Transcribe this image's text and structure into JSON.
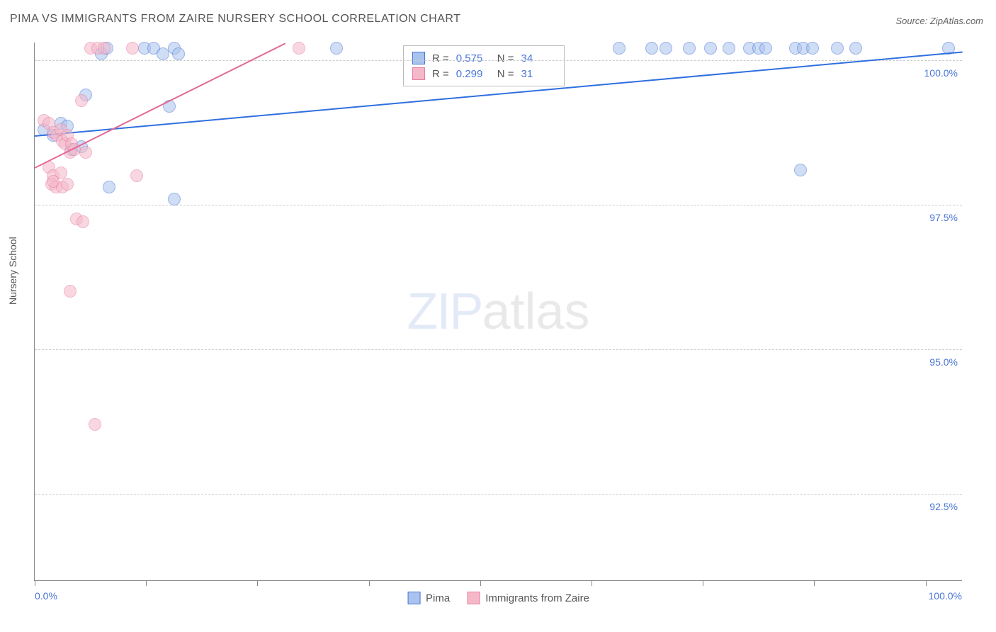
{
  "title": "PIMA VS IMMIGRANTS FROM ZAIRE NURSERY SCHOOL CORRELATION CHART",
  "source": "Source: ZipAtlas.com",
  "yaxis_label": "Nursery School",
  "watermark": {
    "bold": "ZIP",
    "light": "atlas"
  },
  "chart": {
    "type": "scatter",
    "background_color": "#ffffff",
    "grid_color": "#cccccc",
    "axis_color": "#888888",
    "xlim": [
      0,
      100
    ],
    "ylim": [
      91,
      100.3
    ],
    "xtick_positions": [
      0,
      12,
      24,
      36,
      48,
      60,
      72,
      84,
      96
    ],
    "xtick_labels_shown": {
      "first": "0.0%",
      "last": "100.0%"
    },
    "ytick_positions": [
      92.5,
      95.0,
      97.5,
      100.0
    ],
    "ytick_labels": [
      "92.5%",
      "95.0%",
      "97.5%",
      "100.0%"
    ],
    "label_fontsize": 14,
    "label_color": "#4a76d6",
    "title_fontsize": 16,
    "title_color": "#555555",
    "marker_radius": 9,
    "marker_opacity": 0.55,
    "marker_border_width": 1,
    "trendline_width": 2
  },
  "series": [
    {
      "name": "Pima",
      "label": "Pima",
      "fill": "#a9c3ee",
      "stroke": "#4a76d6",
      "trendline_color": "#2f6fe0",
      "trendline": {
        "x1": 0,
        "y1": 98.7,
        "x2": 100,
        "y2": 100.15
      },
      "stats": {
        "R": "0.575",
        "N": "34"
      },
      "points": [
        [
          5.5,
          99.4
        ],
        [
          7.2,
          100.1
        ],
        [
          7.8,
          100.2
        ],
        [
          11.8,
          100.2
        ],
        [
          12.8,
          100.2
        ],
        [
          13.8,
          100.1
        ],
        [
          15.0,
          100.2
        ],
        [
          15.5,
          100.1
        ],
        [
          32.5,
          100.2
        ],
        [
          63.0,
          100.2
        ],
        [
          66.5,
          100.2
        ],
        [
          68.0,
          100.2
        ],
        [
          70.5,
          100.2
        ],
        [
          72.8,
          100.2
        ],
        [
          74.8,
          100.2
        ],
        [
          77.0,
          100.2
        ],
        [
          78.0,
          100.2
        ],
        [
          78.8,
          100.2
        ],
        [
          82.0,
          100.2
        ],
        [
          82.8,
          100.2
        ],
        [
          83.8,
          100.2
        ],
        [
          86.5,
          100.2
        ],
        [
          88.5,
          100.2
        ],
        [
          98.5,
          100.2
        ],
        [
          1.0,
          98.8
        ],
        [
          2.0,
          98.7
        ],
        [
          2.8,
          98.9
        ],
        [
          3.5,
          98.85
        ],
        [
          4.0,
          98.45
        ],
        [
          5.0,
          98.5
        ],
        [
          8.0,
          97.8
        ],
        [
          14.5,
          99.2
        ],
        [
          15.0,
          97.6
        ],
        [
          82.5,
          98.1
        ]
      ]
    },
    {
      "name": "Immigrants from Zaire",
      "label": "Immigrants from Zaire",
      "fill": "#f5b8c9",
      "stroke": "#e77da0",
      "trendline_color": "#e26a94",
      "trendline": {
        "x1": 0,
        "y1": 98.15,
        "x2": 27,
        "y2": 100.3
      },
      "stats": {
        "R": "0.299",
        "N": "31"
      },
      "points": [
        [
          6.0,
          100.2
        ],
        [
          6.8,
          100.2
        ],
        [
          7.5,
          100.2
        ],
        [
          10.5,
          100.2
        ],
        [
          28.5,
          100.2
        ],
        [
          5.0,
          99.3
        ],
        [
          1.0,
          98.95
        ],
        [
          1.5,
          98.9
        ],
        [
          2.0,
          98.75
        ],
        [
          2.4,
          98.7
        ],
        [
          2.8,
          98.8
        ],
        [
          3.0,
          98.6
        ],
        [
          3.3,
          98.55
        ],
        [
          3.5,
          98.7
        ],
        [
          3.8,
          98.4
        ],
        [
          4.0,
          98.55
        ],
        [
          4.3,
          98.45
        ],
        [
          1.5,
          98.15
        ],
        [
          2.0,
          98.0
        ],
        [
          2.8,
          98.05
        ],
        [
          5.5,
          98.4
        ],
        [
          11.0,
          98.0
        ],
        [
          1.8,
          97.85
        ],
        [
          2.3,
          97.8
        ],
        [
          3.0,
          97.8
        ],
        [
          3.5,
          97.85
        ],
        [
          4.5,
          97.25
        ],
        [
          5.2,
          97.2
        ],
        [
          3.8,
          96.0
        ],
        [
          6.5,
          93.7
        ],
        [
          2.0,
          97.9
        ]
      ]
    }
  ],
  "legend": {
    "items": [
      {
        "label": "Pima",
        "fill": "#a9c3ee",
        "stroke": "#4a76d6"
      },
      {
        "label": "Immigrants from Zaire",
        "fill": "#f5b8c9",
        "stroke": "#e77da0"
      }
    ]
  },
  "stats_box": {
    "rows": [
      {
        "swatch_fill": "#a9c3ee",
        "swatch_stroke": "#4a76d6",
        "R": "0.575",
        "N": "34"
      },
      {
        "swatch_fill": "#f5b8c9",
        "swatch_stroke": "#e77da0",
        "R": "0.299",
        "N": "31"
      }
    ],
    "labels": {
      "R": "R =",
      "N": "N ="
    }
  }
}
